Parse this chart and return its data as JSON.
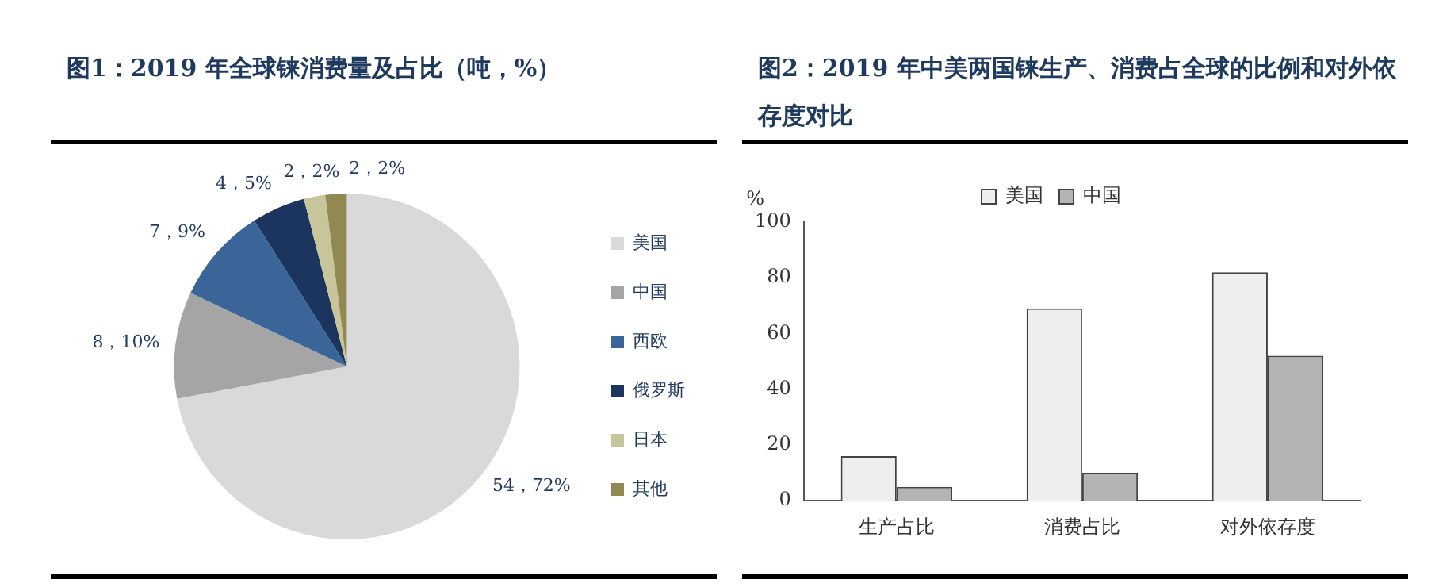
{
  "chart_data": [
    {
      "type": "pie",
      "title": "图1：2019 年全球铼消费量及占比（吨，%）",
      "categories": [
        "美国",
        "中国",
        "西欧",
        "俄罗斯",
        "日本",
        "其他"
      ],
      "values": [
        72,
        10,
        9,
        5,
        2,
        2
      ],
      "colors": [
        "#d9d9d9",
        "#a5a5a5",
        "#3a6598",
        "#1c355e",
        "#c9c59a",
        "#918950"
      ],
      "value_labels": [
        "54，72%",
        "8，10%",
        "7，9%",
        "4，5%",
        "2，2%",
        "2，2%"
      ],
      "legend": "right"
    },
    {
      "type": "bar",
      "title": "图2：2019 年中美两国铼生产、消费占全球的比例和对外依存度对比",
      "categories": [
        "生产占比",
        "消费占比",
        "对外依存度"
      ],
      "ylabel": "%",
      "ylim": [
        0,
        100
      ],
      "yticks": [
        0,
        20,
        40,
        60,
        80,
        100
      ],
      "grid": false,
      "legend": "top",
      "series": [
        {
          "name": "美国",
          "color": "#eeeeee",
          "values": [
            16,
            69,
            82
          ]
        },
        {
          "name": "中国",
          "color": "#b4b4b4",
          "values": [
            5,
            10,
            52
          ]
        }
      ]
    }
  ]
}
